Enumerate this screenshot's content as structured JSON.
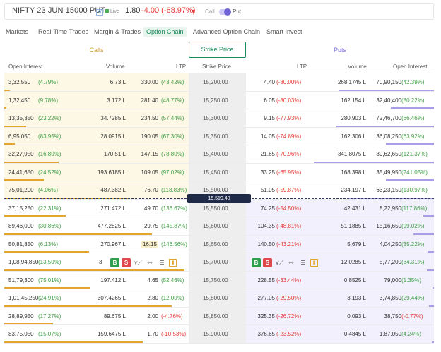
{
  "header": {
    "symbol": "NIFTY 23 JUN 15000 PUT",
    "w_badge": "W",
    "live_label": "Live",
    "ltp": "1.80",
    "change": "-4.00 (-68.97%)",
    "arrow": "▼",
    "call_label": "Call",
    "put_label": "Put"
  },
  "tabs": [
    "Markets",
    "Real-Time Trades",
    "Margin & Trades",
    "Option Chain",
    "Advanced Option Chain",
    "Smart Invest"
  ],
  "active_tab": "Option Chain",
  "section": {
    "calls": "Calls",
    "strike": "Strike Price",
    "puts": "Puts"
  },
  "columns": [
    "Open Interest",
    "Volume",
    "LTP",
    "Strike Price",
    "LTP",
    "Volume",
    "Open Interest"
  ],
  "spot_price": "15,519.40",
  "actions": {
    "buy": "B",
    "sell": "S"
  },
  "colors": {
    "green": "#43a047",
    "red": "#e53935",
    "accent_green": "#1a8a5b",
    "calls_bg": "#fdf8e6",
    "puts_bg": "#f2f0fd",
    "spot_bg": "#1e2a47"
  },
  "rows": [
    {
      "c_oi": "3,32,550",
      "c_oichg": "(4.79%)",
      "c_vol": "6.73 L",
      "c_ltp": "330.00",
      "c_ltpchg": "(43.42%)",
      "strike": "15,200.00",
      "p_ltp": "4.40",
      "p_ltpchg": "(-80.00%)",
      "p_vol": "268.1745 L",
      "p_oi": "70,90,150",
      "p_oichg": "(42.39%)"
    },
    {
      "c_oi": "1,32,450",
      "c_oichg": "(9.78%)",
      "c_vol": "3.172 L",
      "c_ltp": "281.40",
      "c_ltpchg": "(48.77%)",
      "strike": "15,250.00",
      "p_ltp": "6.05",
      "p_ltpchg": "(-80.03%)",
      "p_vol": "162.154 L",
      "p_oi": "32,40,400",
      "p_oichg": "(80.22%)"
    },
    {
      "c_oi": "13,35,350",
      "c_oichg": "(23.22%)",
      "c_vol": "34.7285 L",
      "c_ltp": "234.50",
      "c_ltpchg": "(57.44%)",
      "strike": "15,300.00",
      "p_ltp": "9.15",
      "p_ltpchg": "(-77.93%)",
      "p_vol": "280.903 L",
      "p_oi": "72,46,700",
      "p_oichg": "(66.46%)"
    },
    {
      "c_oi": "6,95,050",
      "c_oichg": "(83.95%)",
      "c_vol": "28.0915 L",
      "c_ltp": "190.05",
      "c_ltpchg": "(67.30%)",
      "strike": "15,350.00",
      "p_ltp": "14.05",
      "p_ltpchg": "(-74.89%)",
      "p_vol": "162.306 L",
      "p_oi": "36,08,250",
      "p_oichg": "(63.92%)"
    },
    {
      "c_oi": "32,27,950",
      "c_oichg": "(16.80%)",
      "c_vol": "170.51 L",
      "c_ltp": "147.15",
      "c_ltpchg": "(78.80%)",
      "strike": "15,400.00",
      "p_ltp": "21.65",
      "p_ltpchg": "(-70.96%)",
      "p_vol": "341.8075 L",
      "p_oi": "89,62,650",
      "p_oichg": "(121.37%)"
    },
    {
      "c_oi": "24,41,650",
      "c_oichg": "(24.52%)",
      "c_vol": "193.6185 L",
      "c_ltp": "109.05",
      "c_ltpchg": "(97.02%)",
      "strike": "15,450.00",
      "p_ltp": "33.25",
      "p_ltpchg": "(-65.95%)",
      "p_vol": "168.398 L",
      "p_oi": "35,49,950",
      "p_oichg": "(241.05%)"
    },
    {
      "c_oi": "75,01,200",
      "c_oichg": "(4.06%)",
      "c_vol": "487.382 L",
      "c_ltp": "76.70",
      "c_ltpchg": "(118.83%)",
      "strike": "15,500.00",
      "p_ltp": "51.05",
      "p_ltpchg": "(-59.87%)",
      "p_vol": "234.197 L",
      "p_oi": "63,23,150",
      "p_oichg": "(130.97%)"
    },
    {
      "c_oi": "37,15,250",
      "c_oichg": "(22.31%)",
      "c_vol": "271.472 L",
      "c_ltp": "49.70",
      "c_ltpchg": "(136.67%)",
      "strike": "15,550.00",
      "p_ltp": "74.25",
      "p_ltpchg": "(-54.50%)",
      "p_vol": "42.431 L",
      "p_oi": "8,22,950",
      "p_oichg": "(117.86%)"
    },
    {
      "c_oi": "89,46,000",
      "c_oichg": "(30.86%)",
      "c_vol": "477.2825 L",
      "c_ltp": "29.75",
      "c_ltpchg": "(145.87%)",
      "strike": "15,600.00",
      "p_ltp": "104.35",
      "p_ltpchg": "(-48.81%)",
      "p_vol": "51.1885 L",
      "p_oi": "15,16,650",
      "p_oichg": "(99.02%)"
    },
    {
      "c_oi": "50,81,850",
      "c_oichg": "(6.13%)",
      "c_vol": "270.967 L",
      "c_ltp": "16.15",
      "c_ltpchg": "(146.56%)",
      "strike": "15,650.00",
      "p_ltp": "140.50",
      "p_ltpchg": "(-43.21%)",
      "p_vol": "5.679 L",
      "p_oi": "4,04,250",
      "p_oichg": "(35.22%)"
    },
    {
      "c_oi": "1,08,94,850",
      "c_oichg": "(13.50%)",
      "c_vol": "",
      "c_ltp": "",
      "c_ltpchg": "",
      "strike": "15,700.00",
      "p_ltp": "",
      "p_ltpchg": "",
      "p_vol": "12.0285 L",
      "p_oi": "5,77,200",
      "p_oichg": "(34.31%)",
      "c_partial": "3"
    },
    {
      "c_oi": "51,79,300",
      "c_oichg": "(75.01%)",
      "c_vol": "197.412 L",
      "c_ltp": "4.65",
      "c_ltpchg": "(52.46%)",
      "strike": "15,750.00",
      "p_ltp": "228.55",
      "p_ltpchg": "(-33.44%)",
      "p_vol": "0.8525 L",
      "p_oi": "79,000",
      "p_oichg": "(1.35%)"
    },
    {
      "c_oi": "1,01,45,250",
      "c_oichg": "(24.91%)",
      "c_vol": "307.4265 L",
      "c_ltp": "2.80",
      "c_ltpchg": "(12.00%)",
      "strike": "15,800.00",
      "p_ltp": "277.05",
      "p_ltpchg": "(-29.50%)",
      "p_vol": "3.193 L",
      "p_oi": "3,74,850",
      "p_oichg": "(29.44%)"
    },
    {
      "c_oi": "28,89,950",
      "c_oichg": "(17.27%)",
      "c_vol": "89.675 L",
      "c_ltp": "2.00",
      "c_ltpchg": "(-4.76%)",
      "strike": "15,850.00",
      "p_ltp": "325.35",
      "p_ltpchg": "(-26.72%)",
      "p_vol": "0.093 L",
      "p_oi": "38,750",
      "p_oichg": "(-0.77%)"
    },
    {
      "c_oi": "83,75,050",
      "c_oichg": "(15.07%)",
      "c_vol": "159.6475 L",
      "c_ltp": "1.70",
      "c_ltpchg": "(-10.53%)",
      "strike": "15,900.00",
      "p_ltp": "376.65",
      "p_ltpchg": "(-23.52%)",
      "p_vol": "0.4845 L",
      "p_oi": "1,87,050",
      "p_oichg": "(4.24%)"
    }
  ],
  "bars": {
    "calls_oi": [
      0.03,
      0.01,
      0.12,
      0.06,
      0.3,
      0.22,
      0.69,
      0.34,
      0.82,
      0.47,
      1.0,
      0.48,
      0.93,
      0.27,
      0.77
    ],
    "puts_oi": [
      0.79,
      0.36,
      0.81,
      0.4,
      1.0,
      0.4,
      0.71,
      0.09,
      0.17,
      0.05,
      0.06,
      0.01,
      0.04,
      0.0,
      0.02
    ]
  }
}
